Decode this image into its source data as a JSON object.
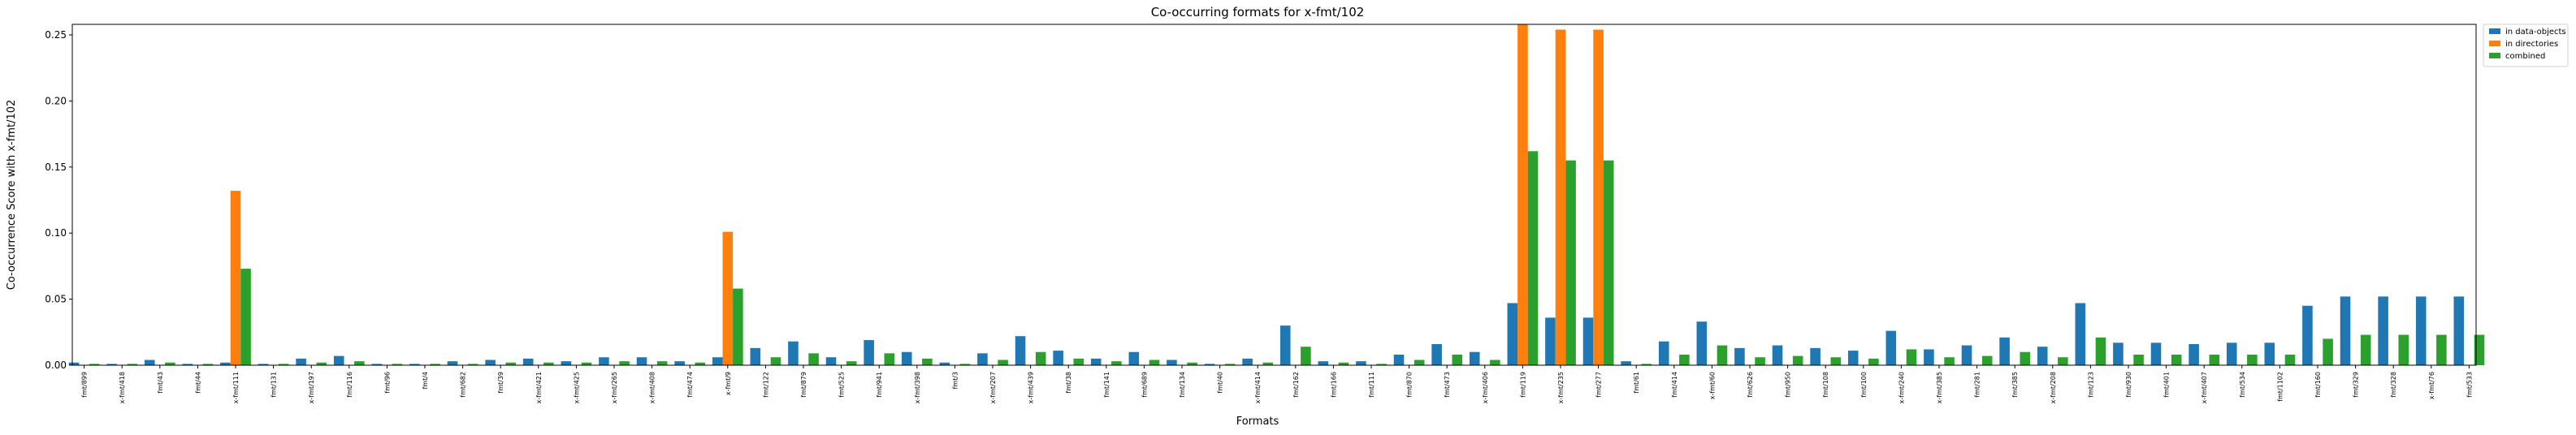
{
  "chart_data": {
    "type": "bar",
    "title": "Co-occurring formats for x-fmt/102",
    "xlabel": "Formats",
    "ylabel": "Co-occurrence Score with x-fmt/102",
    "ylim": [
      0,
      0.258
    ],
    "yticks": [
      0.0,
      0.05,
      0.1,
      0.15,
      0.2,
      0.25
    ],
    "ytick_labels": [
      "0.00",
      "0.05",
      "0.10",
      "0.15",
      "0.20",
      "0.25"
    ],
    "grid": false,
    "legend_position": "outside top-right",
    "categories": [
      "fmt/899",
      "x-fmt/418",
      "fmt/43",
      "fmt/44",
      "x-fmt/111",
      "fmt/131",
      "x-fmt/197",
      "fmt/116",
      "fmt/96",
      "fmt/4",
      "fmt/682",
      "fmt/39",
      "x-fmt/421",
      "x-fmt/425",
      "x-fmt/265",
      "x-fmt/408",
      "fmt/474",
      "x-fmt/9",
      "fmt/122",
      "fmt/879",
      "fmt/525",
      "fmt/941",
      "x-fmt/398",
      "fmt/3",
      "x-fmt/207",
      "x-fmt/439",
      "fmt/38",
      "fmt/141",
      "fmt/689",
      "fmt/134",
      "fmt/40",
      "x-fmt/414",
      "fmt/162",
      "fmt/166",
      "fmt/111",
      "fmt/870",
      "fmt/473",
      "x-fmt/406",
      "fmt/119",
      "x-fmt/235",
      "fmt/277",
      "fmt/61",
      "fmt/414",
      "x-fmt/60",
      "fmt/626",
      "fmt/950",
      "fmt/108",
      "fmt/100",
      "x-fmt/240",
      "x-fmt/385",
      "fmt/281",
      "fmt/385",
      "x-fmt/208",
      "fmt/123",
      "fmt/930",
      "fmt/401",
      "x-fmt/407",
      "fmt/534",
      "fmt/1102",
      "fmt/160",
      "fmt/329",
      "fmt/328",
      "x-fmt/76",
      "fmt/533"
    ],
    "series": [
      {
        "name": "in data-objects",
        "color": "#1f77b4",
        "values": [
          0.002,
          0.001,
          0.004,
          0.001,
          0.002,
          0.001,
          0.005,
          0.007,
          0.001,
          0.001,
          0.003,
          0.004,
          0.005,
          0.003,
          0.006,
          0.006,
          0.003,
          0.006,
          0.013,
          0.018,
          0.006,
          0.019,
          0.01,
          0.002,
          0.009,
          0.022,
          0.011,
          0.005,
          0.01,
          0.004,
          0.001,
          0.005,
          0.03,
          0.003,
          0.003,
          0.008,
          0.016,
          0.01,
          0.047,
          0.036,
          0.036,
          0.003,
          0.018,
          0.033,
          0.013,
          0.015,
          0.013,
          0.011,
          0.026,
          0.012,
          0.015,
          0.021,
          0.014,
          0.047,
          0.017,
          0.017,
          0.016,
          0.017,
          0.017,
          0.045,
          0.052,
          0.052,
          0.052,
          0.052
        ]
      },
      {
        "name": "in directories",
        "color": "#ff7f0e",
        "values": [
          0,
          0,
          0,
          0,
          0.132,
          0,
          0,
          0,
          0,
          0,
          0,
          0,
          0,
          0,
          0,
          0,
          0,
          0.101,
          0,
          0,
          0,
          0,
          0,
          0,
          0,
          0,
          0,
          0,
          0,
          0,
          0,
          0,
          0,
          0,
          0,
          0,
          0,
          0,
          0.258,
          0.254,
          0.254,
          0,
          0,
          0,
          0,
          0,
          0,
          0,
          0,
          0,
          0,
          0,
          0,
          0,
          0,
          0,
          0,
          0,
          0,
          0,
          0,
          0,
          0,
          0
        ]
      },
      {
        "name": "combined",
        "color": "#2ca02c",
        "values": [
          0.001,
          0.001,
          0.002,
          0.001,
          0.073,
          0.001,
          0.002,
          0.003,
          0.001,
          0.001,
          0.001,
          0.002,
          0.002,
          0.002,
          0.003,
          0.003,
          0.002,
          0.058,
          0.006,
          0.009,
          0.003,
          0.009,
          0.005,
          0.001,
          0.004,
          0.01,
          0.005,
          0.003,
          0.004,
          0.002,
          0.001,
          0.002,
          0.014,
          0.002,
          0.001,
          0.004,
          0.008,
          0.004,
          0.162,
          0.155,
          0.155,
          0.001,
          0.008,
          0.015,
          0.006,
          0.007,
          0.006,
          0.005,
          0.012,
          0.006,
          0.007,
          0.01,
          0.006,
          0.021,
          0.008,
          0.008,
          0.008,
          0.008,
          0.008,
          0.02,
          0.023,
          0.023,
          0.023,
          0.023
        ]
      }
    ]
  }
}
